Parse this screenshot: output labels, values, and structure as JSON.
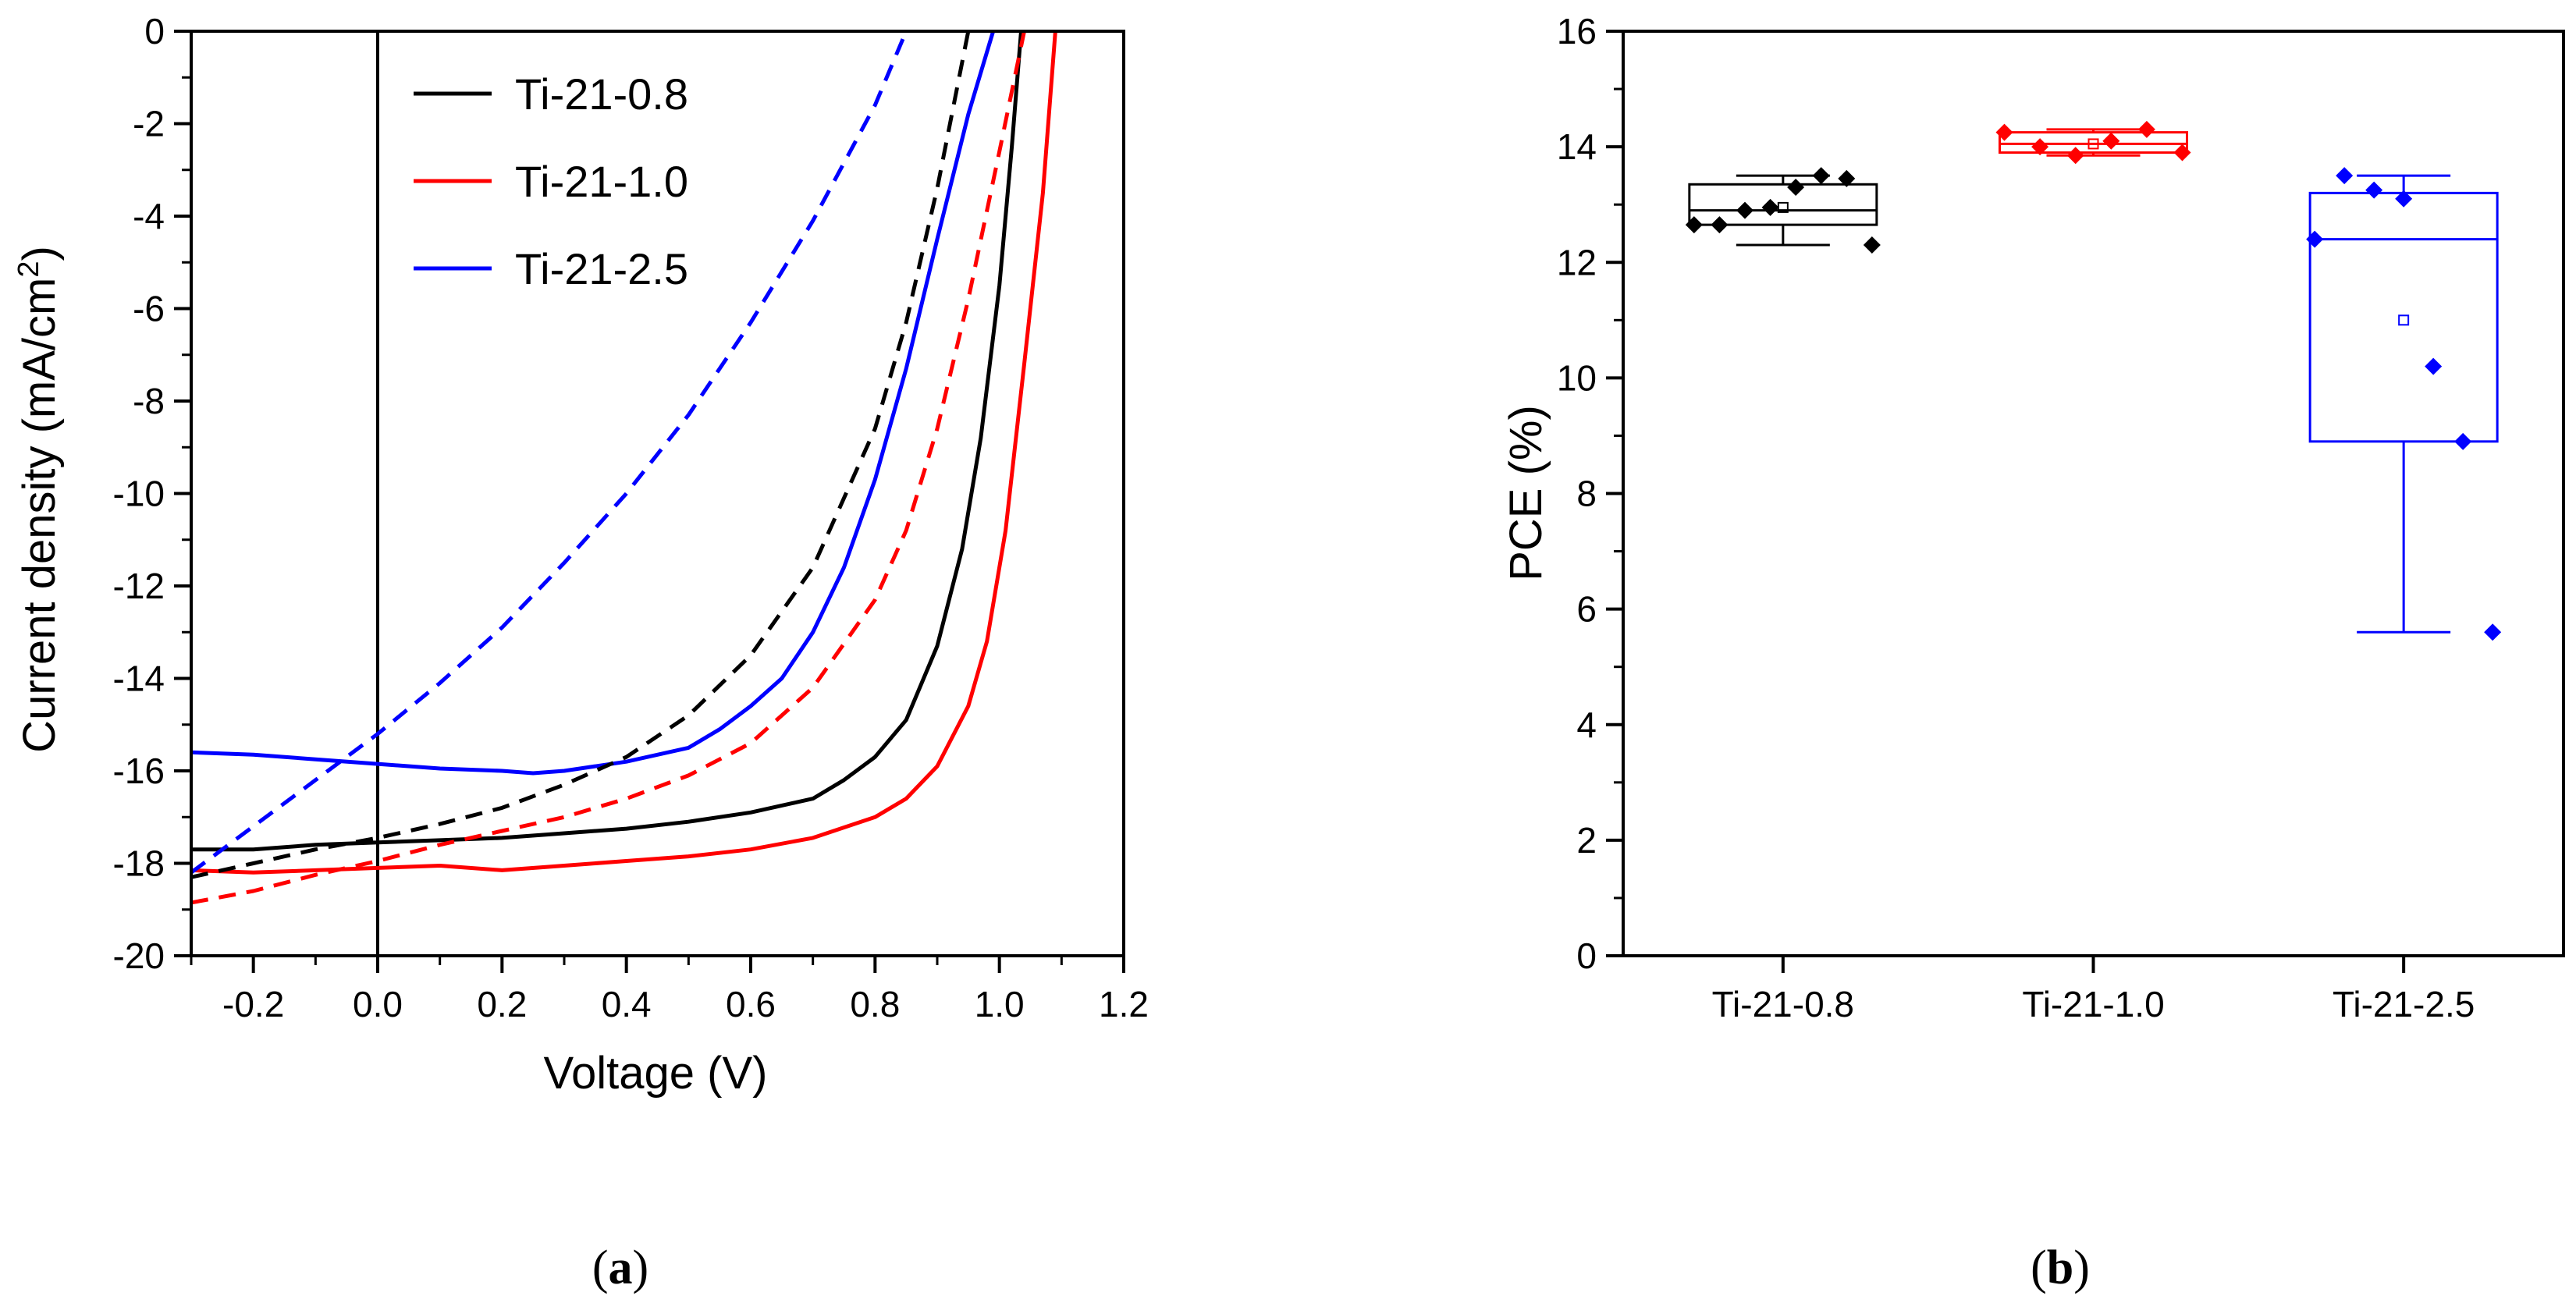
{
  "figure": {
    "panel_a_label": "a",
    "panel_b_label": "b"
  },
  "chart_data": [
    {
      "type": "line",
      "panel": "a",
      "title": "",
      "xlabel": "Voltage (V)",
      "ylabel_main": "Current density (mA/cm",
      "ylabel_sup": "2",
      "ylabel_close": ")",
      "xlim": [
        -0.3,
        1.2
      ],
      "ylim": [
        -20,
        0
      ],
      "x_ticks": [
        -0.2,
        0.0,
        0.2,
        0.4,
        0.6,
        0.8,
        1.0,
        1.2
      ],
      "x_tick_labels": [
        "-0.2",
        "0.0",
        "0.2",
        "0.4",
        "0.6",
        "0.8",
        "1.0",
        "1.2"
      ],
      "y_ticks": [
        0,
        -2,
        -4,
        -6,
        -8,
        -10,
        -12,
        -14,
        -16,
        -18,
        -20
      ],
      "y_tick_labels": [
        "0",
        "-2",
        "-4",
        "-6",
        "-8",
        "-10",
        "-12",
        "-14",
        "-16",
        "-18",
        "-20"
      ],
      "grid": false,
      "zero_line_x": 0.0,
      "legend_position": "top",
      "series": [
        {
          "name": "Ti-21-0.8",
          "color": "#000000",
          "style": "solid",
          "x": [
            -0.3,
            -0.2,
            -0.1,
            0.0,
            0.1,
            0.2,
            0.3,
            0.4,
            0.5,
            0.6,
            0.7,
            0.75,
            0.8,
            0.85,
            0.9,
            0.94,
            0.97,
            1.0,
            1.02,
            1.035
          ],
          "y": [
            -17.7,
            -17.7,
            -17.6,
            -17.55,
            -17.5,
            -17.45,
            -17.35,
            -17.25,
            -17.1,
            -16.9,
            -16.6,
            -16.2,
            -15.7,
            -14.9,
            -13.3,
            -11.2,
            -8.8,
            -5.5,
            -2.5,
            0
          ]
        },
        {
          "name": "Ti-21-1.0",
          "color": "#ff0000",
          "style": "solid",
          "x": [
            -0.3,
            -0.2,
            -0.1,
            0.0,
            0.1,
            0.2,
            0.3,
            0.4,
            0.5,
            0.6,
            0.7,
            0.8,
            0.85,
            0.9,
            0.95,
            0.98,
            1.01,
            1.04,
            1.07,
            1.09
          ],
          "y": [
            -18.15,
            -18.2,
            -18.15,
            -18.1,
            -18.05,
            -18.15,
            -18.05,
            -17.95,
            -17.85,
            -17.7,
            -17.45,
            -17.0,
            -16.6,
            -15.9,
            -14.6,
            -13.2,
            -10.8,
            -7.2,
            -3.5,
            0
          ]
        },
        {
          "name": "Ti-21-2.5",
          "color": "#0000ff",
          "style": "solid",
          "x": [
            -0.3,
            -0.2,
            -0.1,
            0.0,
            0.1,
            0.2,
            0.25,
            0.3,
            0.4,
            0.5,
            0.55,
            0.6,
            0.65,
            0.7,
            0.75,
            0.8,
            0.85,
            0.9,
            0.95,
            0.99
          ],
          "y": [
            -15.6,
            -15.65,
            -15.75,
            -15.85,
            -15.95,
            -16.0,
            -16.05,
            -16.0,
            -15.8,
            -15.5,
            -15.1,
            -14.6,
            -14.0,
            -13.0,
            -11.6,
            -9.7,
            -7.3,
            -4.5,
            -1.8,
            0
          ]
        },
        {
          "name": "Ti-21-0.8 (dashed)",
          "color": "#000000",
          "style": "dashed",
          "x": [
            -0.3,
            -0.2,
            -0.1,
            0.0,
            0.1,
            0.2,
            0.3,
            0.4,
            0.5,
            0.6,
            0.7,
            0.8,
            0.85,
            0.9,
            0.95
          ],
          "y": [
            -18.3,
            -18.0,
            -17.7,
            -17.45,
            -17.15,
            -16.8,
            -16.3,
            -15.7,
            -14.8,
            -13.5,
            -11.6,
            -8.6,
            -6.3,
            -3.4,
            0
          ]
        },
        {
          "name": "Ti-21-1.0 (dashed)",
          "color": "#ff0000",
          "style": "dashed",
          "x": [
            -0.3,
            -0.2,
            -0.1,
            0.0,
            0.1,
            0.2,
            0.3,
            0.4,
            0.5,
            0.6,
            0.7,
            0.8,
            0.85,
            0.9,
            0.95,
            1.0,
            1.04
          ],
          "y": [
            -18.85,
            -18.6,
            -18.25,
            -17.95,
            -17.6,
            -17.3,
            -17.0,
            -16.6,
            -16.1,
            -15.4,
            -14.2,
            -12.3,
            -10.8,
            -8.6,
            -5.8,
            -2.6,
            0
          ]
        },
        {
          "name": "Ti-21-2.5 (dashed)",
          "color": "#0000ff",
          "style": "dashed",
          "x": [
            -0.3,
            -0.2,
            -0.1,
            0.0,
            0.1,
            0.2,
            0.3,
            0.4,
            0.5,
            0.6,
            0.7,
            0.8,
            0.85
          ],
          "y": [
            -18.2,
            -17.2,
            -16.2,
            -15.2,
            -14.1,
            -12.9,
            -11.5,
            -10.0,
            -8.3,
            -6.3,
            -4.1,
            -1.6,
            0
          ]
        }
      ],
      "legend": [
        {
          "label": "Ti-21-0.8",
          "color": "#000000"
        },
        {
          "label": "Ti-21-1.0",
          "color": "#ff0000"
        },
        {
          "label": "Ti-21-2.5",
          "color": "#0000ff"
        }
      ]
    },
    {
      "type": "box",
      "panel": "b",
      "title": "",
      "xlabel": "",
      "ylabel": "PCE (%)",
      "ylim": [
        0,
        16
      ],
      "y_ticks": [
        0,
        2,
        4,
        6,
        8,
        10,
        12,
        14,
        16
      ],
      "y_tick_labels": [
        "0",
        "2",
        "4",
        "6",
        "8",
        "10",
        "12",
        "14",
        "16"
      ],
      "grid": false,
      "categories": [
        "Ti-21-0.8",
        "Ti-21-1.0",
        "Ti-21-2.5"
      ],
      "boxes": [
        {
          "category": "Ti-21-0.8",
          "color": "#000000",
          "whisker_low": 12.3,
          "q1": 12.65,
          "median": 12.9,
          "q3": 13.35,
          "whisker_high": 13.5,
          "mean": 12.95,
          "points": [
            12.65,
            12.65,
            12.9,
            12.95,
            13.3,
            13.5,
            13.45,
            12.3
          ]
        },
        {
          "category": "Ti-21-1.0",
          "color": "#ff0000",
          "whisker_low": 13.85,
          "q1": 13.9,
          "median": 14.05,
          "q3": 14.25,
          "whisker_high": 14.3,
          "mean": 14.05,
          "points": [
            14.25,
            14.0,
            13.85,
            14.1,
            14.3,
            13.9
          ]
        },
        {
          "category": "Ti-21-2.5",
          "color": "#0000ff",
          "whisker_low": 5.6,
          "q1": 8.9,
          "median": 12.4,
          "q3": 13.2,
          "whisker_high": 13.5,
          "mean": 11.0,
          "points": [
            12.4,
            13.5,
            13.25,
            13.1,
            10.2,
            8.9,
            5.6
          ]
        }
      ]
    }
  ]
}
